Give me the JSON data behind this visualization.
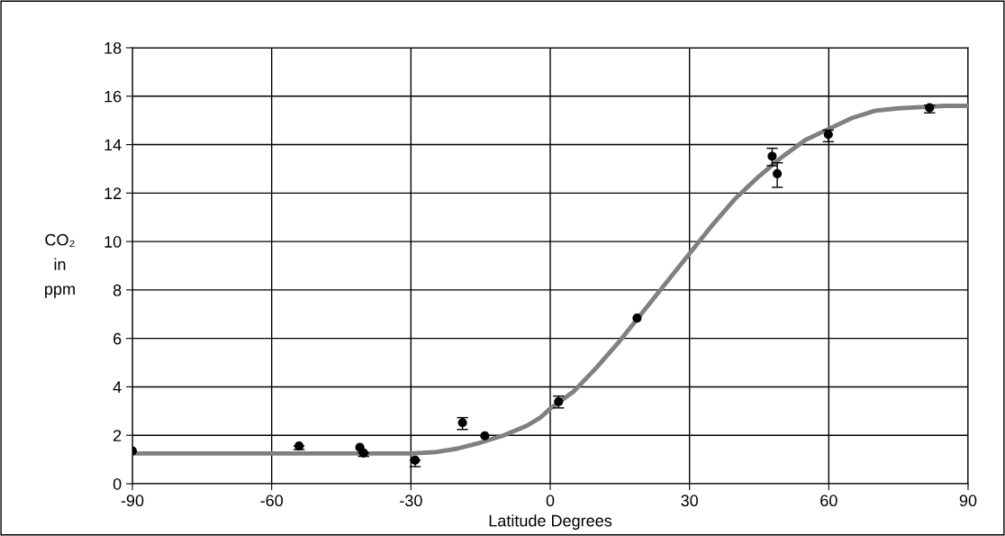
{
  "chart_data": {
    "type": "scatter",
    "xlabel": "Latitude Degrees",
    "ylabel": "CO₂\nin\nppm",
    "xlim": [
      -90,
      90
    ],
    "xticks": [
      -90,
      -60,
      -30,
      0,
      30,
      60,
      90
    ],
    "ylim": [
      0,
      18
    ],
    "yticks": [
      0,
      2,
      4,
      6,
      8,
      10,
      12,
      14,
      16,
      18
    ],
    "grid": true,
    "legend": false,
    "series": [
      {
        "type": "line",
        "color": "#808080",
        "marker": "none",
        "line_style": "solid",
        "x": [
          -90,
          -60,
          -30,
          -25,
          -20,
          -15,
          -10,
          -5,
          -2,
          0,
          5,
          10,
          15,
          20,
          25,
          30,
          35,
          40,
          45,
          50,
          55,
          60,
          65,
          70,
          75,
          80,
          85,
          90
        ],
        "values": [
          1.25,
          1.25,
          1.25,
          1.3,
          1.45,
          1.7,
          2.0,
          2.4,
          2.75,
          3.1,
          3.8,
          4.8,
          5.9,
          7.1,
          8.3,
          9.5,
          10.7,
          11.8,
          12.7,
          13.5,
          14.2,
          14.65,
          15.1,
          15.4,
          15.5,
          15.55,
          15.6,
          15.6
        ]
      },
      {
        "color": "#000000",
        "marker": "circle",
        "x": [
          -90,
          -54.1,
          -41.0,
          -40.2,
          -29.1,
          -18.9,
          -14.1,
          1.8,
          18.7,
          47.8,
          48.9,
          59.9,
          81.7
        ],
        "values": [
          1.35,
          1.56,
          1.5,
          1.27,
          0.97,
          2.52,
          1.98,
          3.39,
          6.84,
          13.52,
          12.8,
          14.42,
          15.52
        ],
        "errors": [
          null,
          [
            1.41,
            1.56
          ],
          null,
          [
            1.13,
            1.27
          ],
          [
            0.71,
            0.97
          ],
          [
            2.24,
            2.73
          ],
          null,
          [
            3.13,
            3.62
          ],
          null,
          [
            13.13,
            13.85
          ],
          [
            12.24,
            13.25
          ],
          [
            14.12,
            14.6
          ],
          [
            15.31,
            15.63
          ]
        ]
      }
    ]
  }
}
